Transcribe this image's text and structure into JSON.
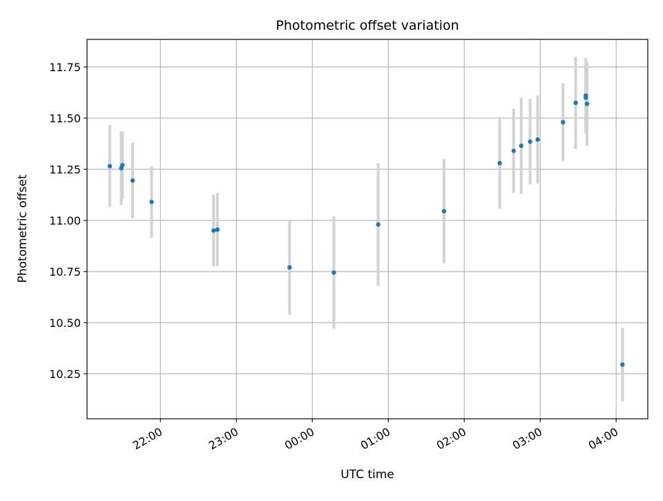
{
  "chart_data": {
    "type": "scatter",
    "title": "Photometric offset variation",
    "xlabel": "UTC time",
    "ylabel": "Photometric offset",
    "x_tick_labels": [
      "22:00",
      "23:00",
      "00:00",
      "01:00",
      "02:00",
      "03:00",
      "04:00"
    ],
    "x_ticks": [
      "22:00",
      "23:00",
      "00:00",
      "01:00",
      "02:00",
      "03:00",
      "04:00"
    ],
    "xlim": [
      "21:02",
      "04:25"
    ],
    "y_tick_labels": [
      "10.25",
      "10.50",
      "10.75",
      "11.00",
      "11.25",
      "11.50",
      "11.75"
    ],
    "y_ticks": [
      10.25,
      10.5,
      10.75,
      11.0,
      11.25,
      11.5,
      11.75
    ],
    "ylim": [
      10.03,
      11.885
    ],
    "grid": true,
    "marker_color": "#1f77b4",
    "errorbar_color": "#d3d3d3",
    "points": [
      {
        "x": "21:20",
        "y": 11.265,
        "err": 0.2
      },
      {
        "x": "21:29",
        "y": 11.255,
        "err": 0.18
      },
      {
        "x": "21:30",
        "y": 11.27,
        "err": 0.165
      },
      {
        "x": "21:38",
        "y": 11.195,
        "err": 0.185
      },
      {
        "x": "21:53",
        "y": 11.09,
        "err": 0.175
      },
      {
        "x": "22:42",
        "y": 10.95,
        "err": 0.175
      },
      {
        "x": "22:45",
        "y": 10.955,
        "err": 0.18
      },
      {
        "x": "23:42",
        "y": 10.77,
        "err": 0.23
      },
      {
        "x": "00:17",
        "y": 10.745,
        "err": 0.275
      },
      {
        "x": "00:52",
        "y": 10.98,
        "err": 0.3
      },
      {
        "x": "01:44",
        "y": 11.045,
        "err": 0.255
      },
      {
        "x": "02:28",
        "y": 11.28,
        "err": 0.225
      },
      {
        "x": "02:39",
        "y": 11.34,
        "err": 0.205
      },
      {
        "x": "02:45",
        "y": 11.365,
        "err": 0.235
      },
      {
        "x": "02:52",
        "y": 11.385,
        "err": 0.21
      },
      {
        "x": "02:58",
        "y": 11.395,
        "err": 0.215
      },
      {
        "x": "03:18",
        "y": 11.48,
        "err": 0.19
      },
      {
        "x": "03:28",
        "y": 11.575,
        "err": 0.225
      },
      {
        "x": "03:36",
        "y": 11.61,
        "err": 0.185
      },
      {
        "x": "03:36",
        "y": 11.6,
        "err": 0.17
      },
      {
        "x": "03:37",
        "y": 11.57,
        "err": 0.205
      },
      {
        "x": "04:05",
        "y": 10.295,
        "err": 0.18
      }
    ]
  }
}
